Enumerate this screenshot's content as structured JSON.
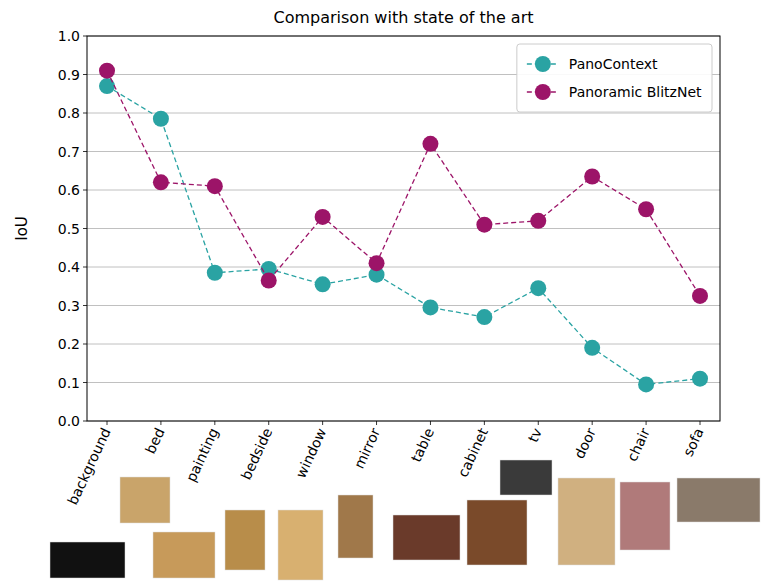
{
  "chart_data": {
    "type": "line",
    "title": "Comparison with state of the art",
    "y_label": "IoU",
    "categories": [
      "background",
      "bed",
      "painting",
      "bedside",
      "window",
      "mirror",
      "table",
      "cabinet",
      "tv",
      "door",
      "chair",
      "sofa"
    ],
    "series": [
      {
        "name": "PanoContext",
        "color": "#2aa3a3",
        "marker": "circle",
        "line_style": "dashed",
        "values": [
          0.87,
          0.785,
          0.385,
          0.395,
          0.355,
          0.38,
          0.295,
          0.27,
          0.345,
          0.19,
          0.095,
          0.11
        ]
      },
      {
        "name": "Panoramic BlitzNet",
        "color": "#9c1468",
        "marker": "circle",
        "line_style": "dashed",
        "values": [
          0.91,
          0.62,
          0.61,
          0.365,
          0.53,
          0.41,
          0.72,
          0.51,
          0.52,
          0.635,
          0.55,
          0.325
        ]
      }
    ],
    "ylim": [
      0,
      1
    ],
    "yticks": [
      {
        "value": 0,
        "label": "0.0"
      },
      0.1,
      0.2,
      0.3,
      0.4,
      0.5,
      0.6,
      0.7,
      0.8,
      0.9,
      {
        "value": 1,
        "label": "1.0"
      }
    ],
    "grid": true,
    "legend": "upper right"
  }
}
